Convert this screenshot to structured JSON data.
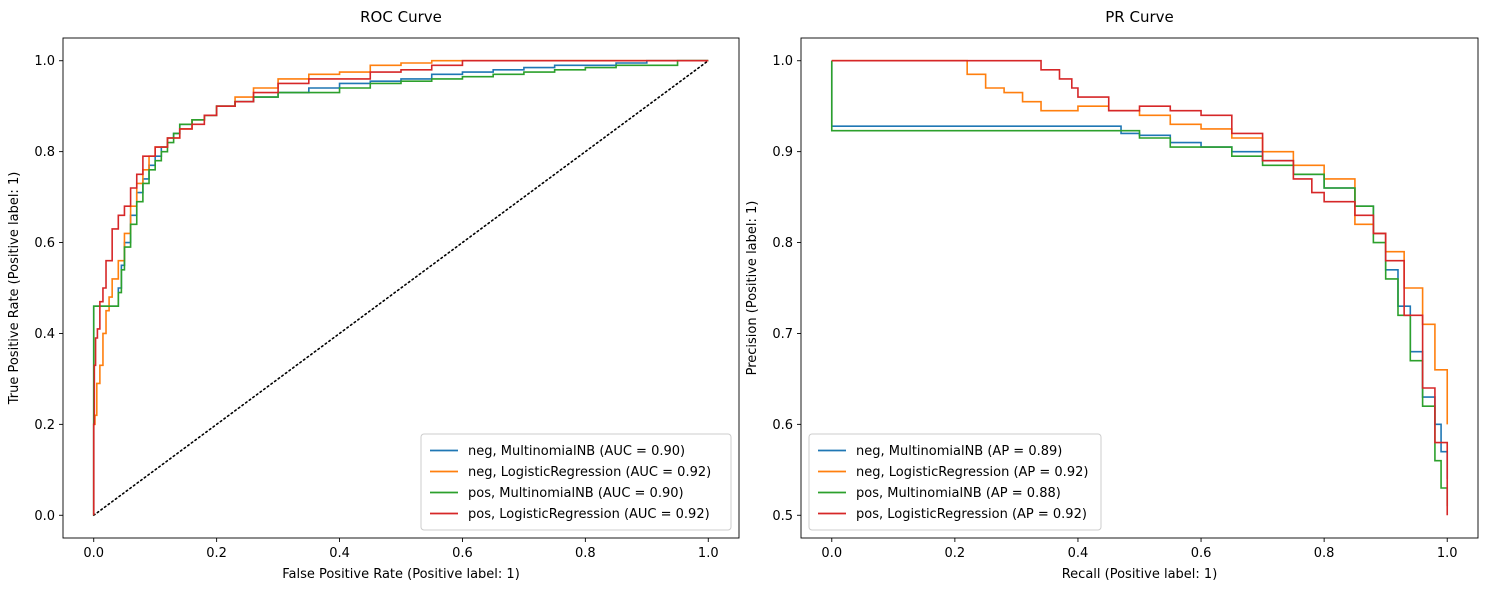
{
  "chart_data": [
    {
      "type": "line",
      "title": "ROC Curve",
      "xlabel": "False Positive Rate (Positive label: 1)",
      "ylabel": "True Positive Rate (Positive label: 1)",
      "xlim": [
        -0.05,
        1.05
      ],
      "ylim": [
        -0.05,
        1.05
      ],
      "xticks": [
        0.0,
        0.2,
        0.4,
        0.6,
        0.8,
        1.0
      ],
      "yticks": [
        0.0,
        0.2,
        0.4,
        0.6,
        0.8,
        1.0
      ],
      "tick_labels_x": [
        "0.0",
        "0.2",
        "0.4",
        "0.6",
        "0.8",
        "1.0"
      ],
      "tick_labels_y": [
        "0.0",
        "0.2",
        "0.4",
        "0.6",
        "0.8",
        "1.0"
      ],
      "grid": false,
      "legend_position": "lower-right",
      "reference_line": {
        "x": [
          0,
          1
        ],
        "y": [
          0,
          1
        ],
        "style": "dotted",
        "color": "#000000"
      },
      "series": [
        {
          "name": "neg, MultinomialNB (AUC = 0.90)",
          "color": "#1f77b4",
          "x": [
            0,
            0.04,
            0.045,
            0.05,
            0.06,
            0.07,
            0.08,
            0.09,
            0.1,
            0.11,
            0.12,
            0.13,
            0.14,
            0.16,
            0.18,
            0.2,
            0.23,
            0.26,
            0.3,
            0.35,
            0.4,
            0.45,
            0.5,
            0.55,
            0.6,
            0.65,
            0.7,
            0.75,
            0.8,
            0.85,
            0.9,
            0.95,
            1.0
          ],
          "y": [
            0,
            0.46,
            0.5,
            0.55,
            0.6,
            0.66,
            0.71,
            0.74,
            0.77,
            0.79,
            0.81,
            0.83,
            0.84,
            0.86,
            0.87,
            0.88,
            0.9,
            0.91,
            0.92,
            0.93,
            0.94,
            0.95,
            0.955,
            0.96,
            0.97,
            0.975,
            0.98,
            0.985,
            0.99,
            0.99,
            0.995,
            1.0,
            1.0
          ]
        },
        {
          "name": "neg, LogisticRegression (AUC = 0.92)",
          "color": "#ff7f0e",
          "x": [
            0,
            0.002,
            0.005,
            0.01,
            0.015,
            0.02,
            0.025,
            0.03,
            0.04,
            0.05,
            0.06,
            0.07,
            0.08,
            0.09,
            0.1,
            0.12,
            0.14,
            0.16,
            0.18,
            0.2,
            0.23,
            0.26,
            0.3,
            0.35,
            0.4,
            0.45,
            0.5,
            0.55,
            0.6,
            0.7,
            0.8,
            0.9,
            1.0
          ],
          "y": [
            0,
            0.2,
            0.22,
            0.29,
            0.33,
            0.4,
            0.45,
            0.48,
            0.52,
            0.56,
            0.62,
            0.68,
            0.73,
            0.76,
            0.79,
            0.81,
            0.83,
            0.85,
            0.87,
            0.88,
            0.9,
            0.92,
            0.94,
            0.96,
            0.97,
            0.975,
            0.99,
            0.995,
            1.0,
            1.0,
            1.0,
            1.0,
            1.0
          ]
        },
        {
          "name": "pos, MultinomialNB (AUC = 0.90)",
          "color": "#2ca02c",
          "x": [
            0,
            0.04,
            0.045,
            0.05,
            0.06,
            0.07,
            0.08,
            0.09,
            0.1,
            0.11,
            0.12,
            0.13,
            0.14,
            0.16,
            0.18,
            0.2,
            0.23,
            0.26,
            0.3,
            0.35,
            0.4,
            0.45,
            0.5,
            0.55,
            0.6,
            0.65,
            0.7,
            0.75,
            0.8,
            0.85,
            0.9,
            0.95,
            1.0
          ],
          "y": [
            0,
            0.46,
            0.49,
            0.54,
            0.59,
            0.64,
            0.69,
            0.73,
            0.76,
            0.78,
            0.8,
            0.82,
            0.84,
            0.86,
            0.87,
            0.88,
            0.9,
            0.91,
            0.92,
            0.93,
            0.93,
            0.94,
            0.95,
            0.955,
            0.96,
            0.965,
            0.97,
            0.975,
            0.98,
            0.985,
            0.99,
            0.99,
            1.0
          ]
        },
        {
          "name": "pos, LogisticRegression (AUC = 0.92)",
          "color": "#d62728",
          "x": [
            0,
            0.001,
            0.003,
            0.006,
            0.01,
            0.015,
            0.02,
            0.03,
            0.04,
            0.05,
            0.06,
            0.07,
            0.08,
            0.1,
            0.12,
            0.14,
            0.16,
            0.18,
            0.2,
            0.23,
            0.26,
            0.3,
            0.35,
            0.4,
            0.45,
            0.5,
            0.55,
            0.6,
            0.7,
            0.8,
            0.9,
            1.0
          ],
          "y": [
            0,
            0.2,
            0.33,
            0.39,
            0.41,
            0.47,
            0.5,
            0.56,
            0.63,
            0.66,
            0.68,
            0.72,
            0.75,
            0.79,
            0.81,
            0.83,
            0.85,
            0.86,
            0.88,
            0.9,
            0.91,
            0.93,
            0.95,
            0.96,
            0.96,
            0.975,
            0.98,
            0.99,
            1.0,
            1.0,
            1.0,
            1.0
          ]
        }
      ]
    },
    {
      "type": "line",
      "title": "PR Curve",
      "xlabel": "Recall (Positive label: 1)",
      "ylabel": "Precision (Positive label: 1)",
      "xlim": [
        -0.05,
        1.05
      ],
      "ylim": [
        0.475,
        1.025
      ],
      "xticks": [
        0.0,
        0.2,
        0.4,
        0.6,
        0.8,
        1.0
      ],
      "yticks": [
        0.5,
        0.6,
        0.7,
        0.8,
        0.9,
        1.0
      ],
      "tick_labels_x": [
        "0.0",
        "0.2",
        "0.4",
        "0.6",
        "0.8",
        "1.0"
      ],
      "tick_labels_y": [
        "0.5",
        "0.6",
        "0.7",
        "0.8",
        "0.9",
        "1.0"
      ],
      "grid": false,
      "legend_position": "lower-left",
      "series": [
        {
          "name": "neg, MultinomialNB (AP = 0.89)",
          "color": "#1f77b4",
          "x": [
            0,
            0.0,
            0.46,
            0.47,
            0.5,
            0.55,
            0.6,
            0.65,
            0.7,
            0.75,
            0.8,
            0.85,
            0.88,
            0.9,
            0.92,
            0.94,
            0.96,
            0.98,
            0.99,
            1.0
          ],
          "y": [
            1.0,
            0.928,
            0.928,
            0.92,
            0.918,
            0.91,
            0.905,
            0.9,
            0.89,
            0.875,
            0.86,
            0.84,
            0.81,
            0.77,
            0.73,
            0.68,
            0.63,
            0.6,
            0.57,
            0.54
          ]
        },
        {
          "name": "neg, LogisticRegression (AP = 0.92)",
          "color": "#ff7f0e",
          "x": [
            0,
            0.21,
            0.22,
            0.25,
            0.28,
            0.31,
            0.34,
            0.4,
            0.45,
            0.5,
            0.55,
            0.6,
            0.65,
            0.7,
            0.75,
            0.8,
            0.85,
            0.88,
            0.9,
            0.93,
            0.96,
            0.98,
            1.0
          ],
          "y": [
            1.0,
            1.0,
            0.985,
            0.97,
            0.965,
            0.955,
            0.945,
            0.95,
            0.945,
            0.94,
            0.93,
            0.925,
            0.915,
            0.9,
            0.885,
            0.87,
            0.82,
            0.81,
            0.79,
            0.75,
            0.71,
            0.66,
            0.6
          ]
        },
        {
          "name": "pos, MultinomialNB (AP = 0.88)",
          "color": "#2ca02c",
          "x": [
            0,
            0.0,
            0.46,
            0.5,
            0.55,
            0.6,
            0.65,
            0.7,
            0.75,
            0.8,
            0.85,
            0.88,
            0.9,
            0.92,
            0.94,
            0.96,
            0.98,
            0.99,
            1.0
          ],
          "y": [
            1.0,
            0.923,
            0.923,
            0.915,
            0.905,
            0.905,
            0.895,
            0.885,
            0.875,
            0.86,
            0.84,
            0.8,
            0.76,
            0.72,
            0.67,
            0.62,
            0.56,
            0.53,
            0.51
          ]
        },
        {
          "name": "pos, LogisticRegression (AP = 0.92)",
          "color": "#d62728",
          "x": [
            0,
            0.33,
            0.34,
            0.37,
            0.39,
            0.4,
            0.45,
            0.5,
            0.55,
            0.6,
            0.65,
            0.7,
            0.75,
            0.78,
            0.8,
            0.85,
            0.88,
            0.9,
            0.93,
            0.96,
            0.98,
            1.0
          ],
          "y": [
            1.0,
            1.0,
            0.99,
            0.98,
            0.97,
            0.96,
            0.945,
            0.95,
            0.945,
            0.94,
            0.92,
            0.89,
            0.87,
            0.855,
            0.845,
            0.83,
            0.81,
            0.78,
            0.72,
            0.64,
            0.58,
            0.5
          ]
        }
      ]
    }
  ]
}
